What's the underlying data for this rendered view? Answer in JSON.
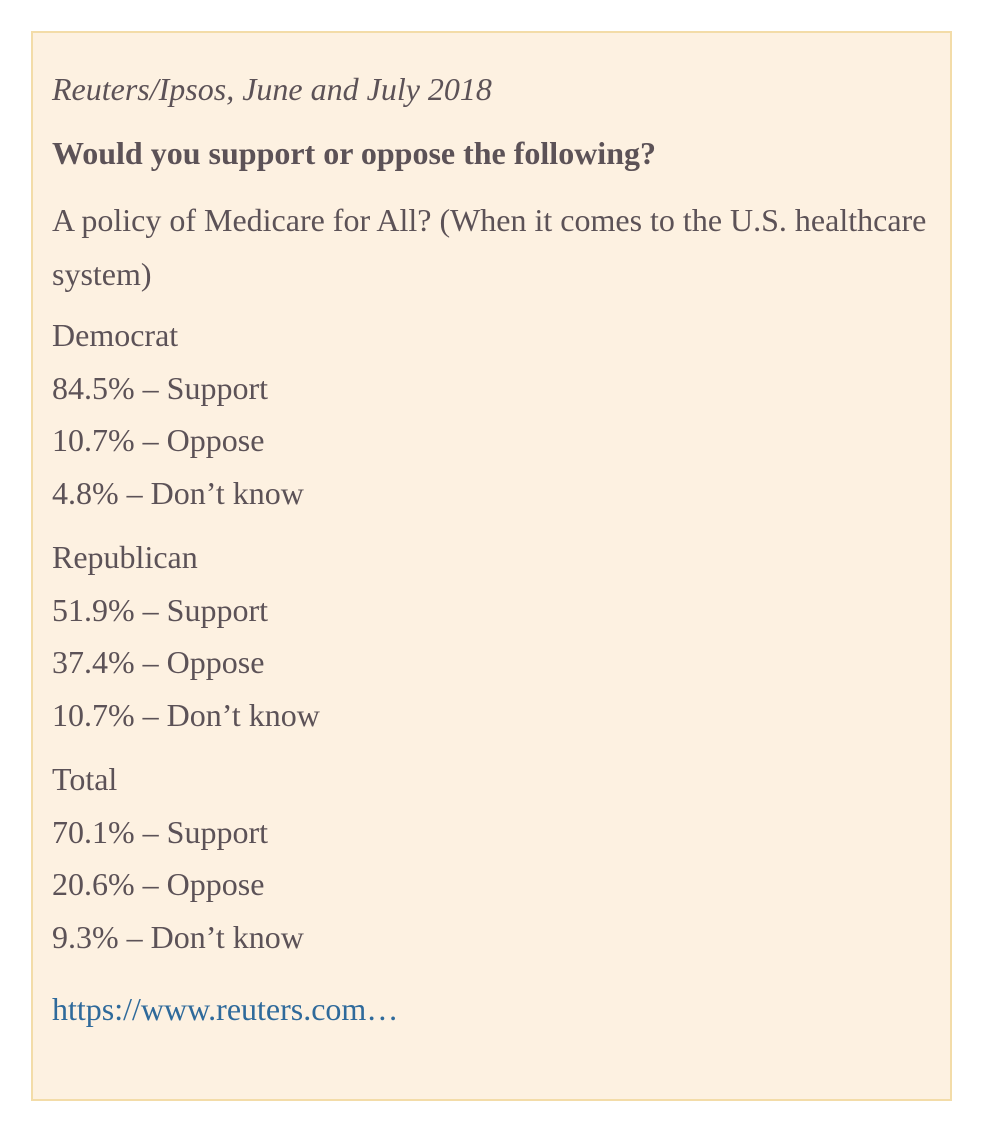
{
  "card": {
    "source": "Reuters/Ipsos, June and July 2018",
    "question": "Would you support or oppose the following?",
    "subquestion": "A policy of Medicare for All? (When it comes to the U.S. healthcare system)",
    "groups": [
      {
        "label": "Democrat",
        "rows": [
          "84.5% – Support",
          "10.7% – Oppose",
          "4.8% – Don’t know"
        ]
      },
      {
        "label": "Republican",
        "rows": [
          "51.9% – Support",
          "37.4% – Oppose",
          "10.7% – Don’t know"
        ]
      },
      {
        "label": "Total",
        "rows": [
          "70.1% – Support",
          "20.6% – Oppose",
          "9.3% – Don’t know"
        ]
      }
    ],
    "link_text": "https://www.reuters.com…"
  },
  "colors": {
    "background": "#fdf1e1",
    "border": "#f3dca8",
    "text": "#5c5257",
    "link": "#2f6a9b"
  }
}
